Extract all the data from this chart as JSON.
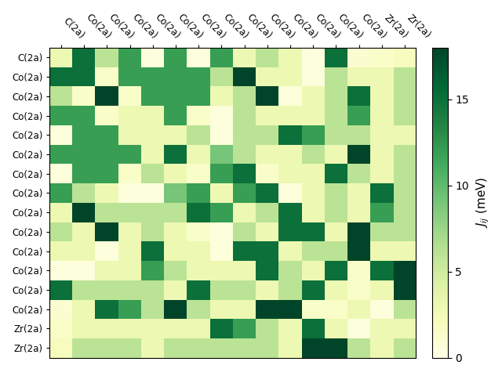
{
  "labels": [
    "C(2a)",
    "Co(2a)",
    "Co(2a)",
    "Co(2a)",
    "Co(2a)",
    "Co(2a)",
    "Co(2a)",
    "Co(2a)",
    "Co(2a)",
    "Co(2a)",
    "Co(2a)",
    "Co(2a)",
    "Co(2a)",
    "Co(2a)",
    "Zr(2a)",
    "Zr(2a)"
  ],
  "col_labels": [
    "C(2a)",
    "Co(2a)",
    "Co(2a)",
    "Co(2a)",
    "Co(2a)",
    "Co(2a)",
    "Co(2a)",
    "Co(2a)",
    "Co(2a)",
    "Co(2a)",
    "Co(2a)",
    "Co(2a)",
    "Co(2a)",
    "Co(2a)",
    "Zr(2a)",
    "Zr(2a)"
  ],
  "matrix": [
    [
      3.0,
      15.0,
      6.0,
      12.0,
      0.5,
      12.0,
      0.5,
      12.0,
      3.0,
      6.0,
      3.0,
      0.5,
      15.0,
      1.0,
      1.5,
      2.0
    ],
    [
      15.0,
      15.0,
      1.5,
      12.0,
      12.0,
      12.0,
      12.0,
      6.0,
      18.0,
      3.0,
      3.0,
      0.5,
      6.0,
      3.0,
      3.0,
      6.0
    ],
    [
      6.0,
      1.5,
      18.0,
      1.5,
      12.0,
      12.0,
      12.0,
      3.0,
      6.0,
      18.0,
      0.5,
      3.0,
      6.0,
      15.0,
      3.0,
      6.0
    ],
    [
      12.0,
      12.0,
      1.5,
      3.0,
      3.0,
      12.0,
      1.5,
      0.5,
      6.0,
      3.0,
      3.0,
      3.0,
      6.0,
      12.0,
      3.0,
      6.0
    ],
    [
      0.5,
      12.0,
      12.0,
      3.0,
      3.0,
      3.0,
      6.0,
      0.5,
      6.0,
      6.0,
      15.0,
      12.0,
      6.0,
      6.0,
      3.0,
      3.0
    ],
    [
      12.0,
      12.0,
      12.0,
      12.0,
      3.0,
      15.0,
      3.0,
      9.0,
      6.0,
      3.0,
      3.0,
      6.0,
      3.0,
      18.0,
      3.0,
      6.0
    ],
    [
      0.5,
      12.0,
      12.0,
      1.5,
      6.0,
      3.0,
      1.5,
      12.0,
      15.0,
      1.5,
      3.0,
      3.0,
      15.0,
      6.0,
      3.0,
      6.0
    ],
    [
      12.0,
      6.0,
      3.0,
      0.5,
      0.5,
      9.0,
      12.0,
      3.0,
      12.0,
      15.0,
      0.5,
      3.0,
      6.0,
      3.0,
      15.0,
      6.0
    ],
    [
      3.0,
      18.0,
      6.0,
      6.0,
      6.0,
      6.0,
      15.0,
      12.0,
      3.0,
      6.0,
      15.0,
      3.0,
      6.0,
      3.0,
      12.0,
      6.0
    ],
    [
      6.0,
      3.0,
      18.0,
      3.0,
      6.0,
      3.0,
      1.5,
      0.5,
      6.0,
      3.0,
      15.0,
      15.0,
      3.0,
      18.0,
      6.0,
      6.0
    ],
    [
      3.0,
      3.0,
      0.5,
      3.0,
      15.0,
      3.0,
      3.0,
      0.5,
      15.0,
      15.0,
      3.0,
      6.0,
      6.0,
      18.0,
      3.0,
      3.0
    ],
    [
      0.5,
      0.5,
      3.0,
      3.0,
      12.0,
      6.0,
      3.0,
      3.0,
      3.0,
      15.0,
      6.0,
      3.0,
      15.0,
      1.5,
      15.0,
      18.0
    ],
    [
      15.0,
      6.0,
      6.0,
      6.0,
      6.0,
      3.0,
      15.0,
      6.0,
      6.0,
      3.0,
      6.0,
      15.0,
      3.0,
      1.5,
      3.0,
      18.0
    ],
    [
      1.0,
      3.0,
      15.0,
      12.0,
      6.0,
      18.0,
      6.0,
      3.0,
      3.0,
      18.0,
      18.0,
      1.5,
      1.5,
      3.0,
      0.5,
      6.0
    ],
    [
      1.5,
      3.0,
      3.0,
      3.0,
      3.0,
      3.0,
      3.0,
      15.0,
      12.0,
      6.0,
      3.0,
      15.0,
      3.0,
      0.5,
      3.0,
      3.0
    ],
    [
      2.0,
      6.0,
      6.0,
      6.0,
      3.0,
      6.0,
      6.0,
      6.0,
      6.0,
      6.0,
      3.0,
      18.0,
      18.0,
      6.0,
      3.0,
      6.0
    ]
  ],
  "vmin": 0,
  "vmax": 18,
  "colorbar_ticks": [
    0,
    5,
    10,
    15
  ],
  "colorbar_label": "$J_{ij}$ (meV)",
  "colormap": "YlGn"
}
